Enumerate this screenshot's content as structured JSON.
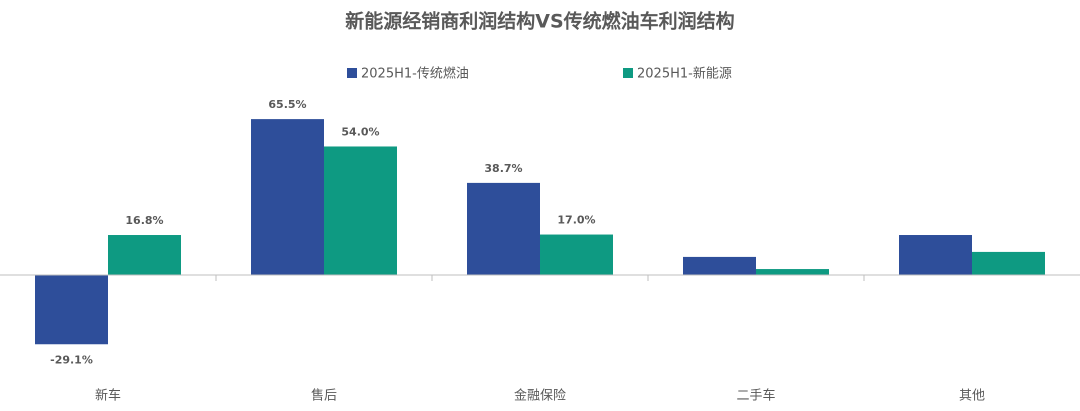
{
  "chart_data": {
    "type": "bar",
    "title": "新能源经销商利润结构VS传统燃油车利润结构",
    "categories": [
      "新车",
      "售后",
      "金融保险",
      "二手车",
      "其他"
    ],
    "series": [
      {
        "name": "2025H1-传统燃油",
        "color": "#2e4e9a",
        "values": [
          -29.1,
          65.5,
          38.7,
          7.6,
          16.8
        ],
        "value_labels": [
          "-29.1%",
          "65.5%",
          "38.7%",
          null,
          null
        ]
      },
      {
        "name": "2025H1-新能源",
        "color": "#0e9a82",
        "values": [
          16.8,
          54.0,
          17.0,
          2.5,
          9.7
        ],
        "value_labels": [
          "16.8%",
          "54.0%",
          "17.0%",
          null,
          null
        ]
      }
    ]
  }
}
